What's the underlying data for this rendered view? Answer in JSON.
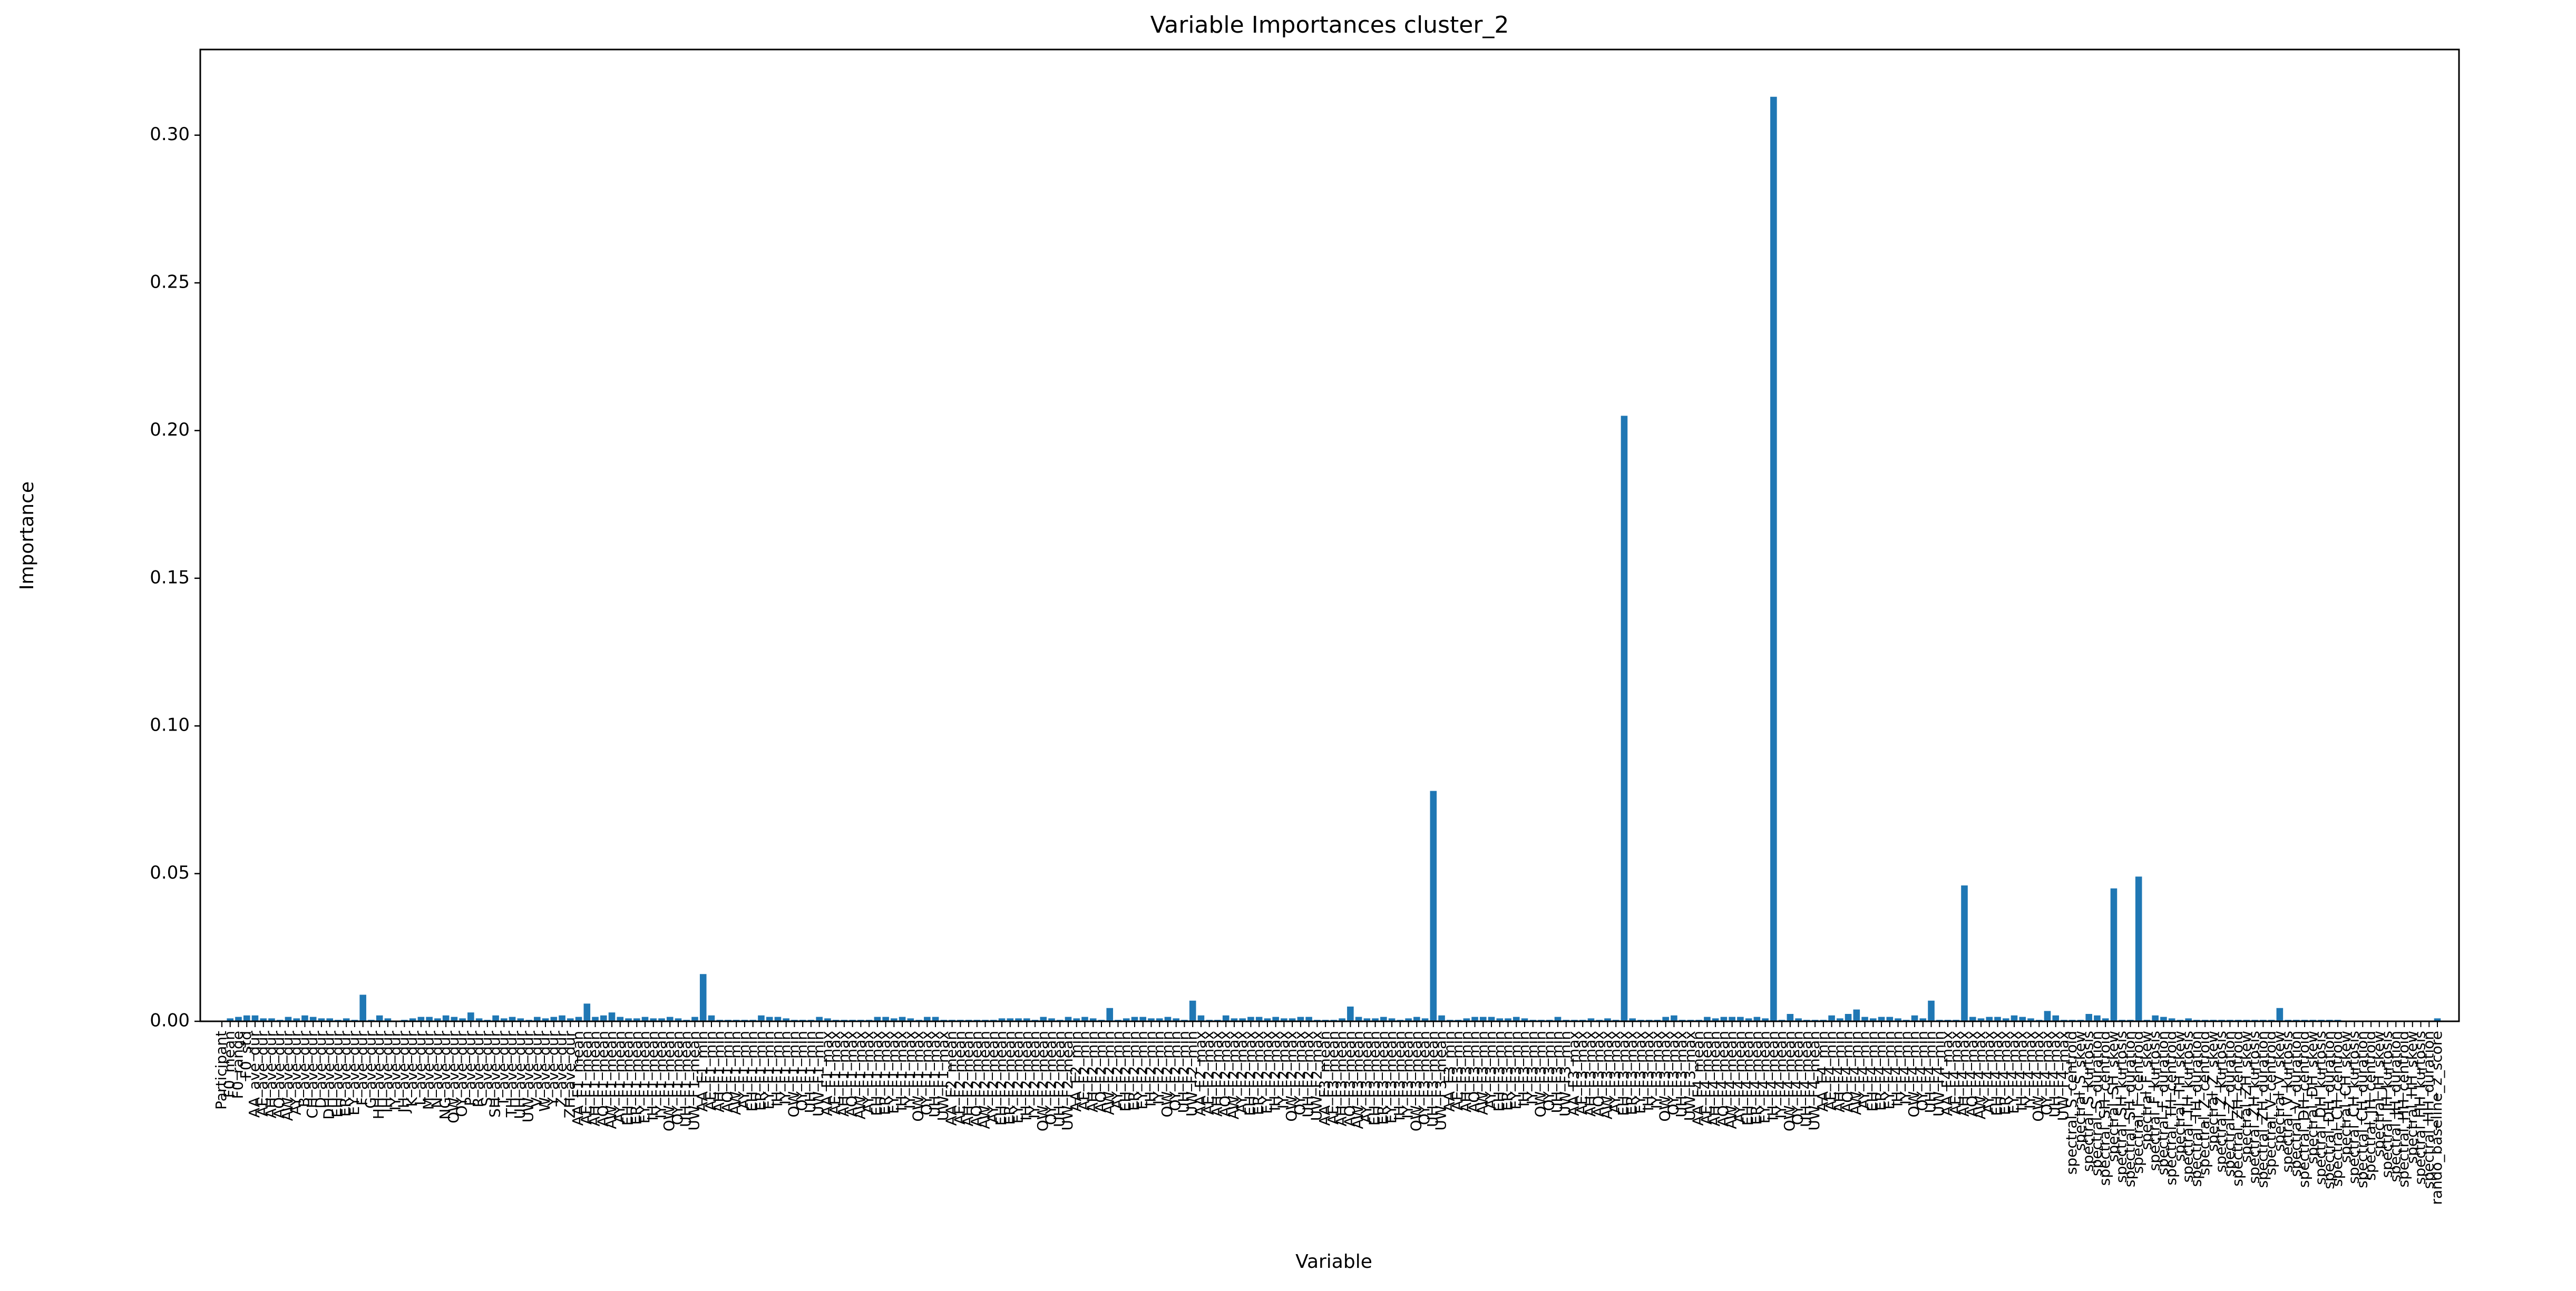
{
  "chart_data": {
    "type": "bar",
    "title": "Variable Importances cluster_2",
    "xlabel": "Variable",
    "ylabel": "Importance",
    "color": "#1f77b4",
    "categories": [
      "Participant",
      "F0_mean",
      "F0_range",
      "F0_std",
      "AA_ave_dur",
      "AE_ave_dur",
      "AH_ave_dur",
      "AO_ave_dur",
      "AW_ave_dur",
      "AY_ave_dur",
      "B_ave_dur",
      "CH_ave_dur",
      "D_ave_dur",
      "DH_ave_dur",
      "EH_ave_dur",
      "ER_ave_dur",
      "EY_ave_dur",
      "F_ave_dur",
      "G_ave_dur",
      "HH_ave_dur",
      "IH_ave_dur",
      "IY_ave_dur",
      "JH_ave_dur",
      "K_ave_dur",
      "L_ave_dur",
      "M_ave_dur",
      "N_ave_dur",
      "NG_ave_dur",
      "OW_ave_dur",
      "OY_ave_dur",
      "P_ave_dur",
      "R_ave_dur",
      "S_ave_dur",
      "SH_ave_dur",
      "T_ave_dur",
      "TH_ave_dur",
      "UH_ave_dur",
      "UW_ave_dur",
      "V_ave_dur",
      "W_ave_dur",
      "Y_ave_dur",
      "Z_ave_dur",
      "ZH_ave_dur",
      "AA_F1_mean",
      "AE_F1_mean",
      "AH_F1_mean",
      "AO_F1_mean",
      "AW_F1_mean",
      "AY_F1_mean",
      "EH_F1_mean",
      "ER_F1_mean",
      "EY_F1_mean",
      "IH_F1_mean",
      "IY_F1_mean",
      "OW_F1_mean",
      "OY_F1_mean",
      "UH_F1_mean",
      "UW_F1_mean",
      "AA_F1_min",
      "AE_F1_min",
      "AH_F1_min",
      "AO_F1_min",
      "AW_F1_min",
      "AY_F1_min",
      "EH_F1_min",
      "ER_F1_min",
      "EY_F1_min",
      "IH_F1_min",
      "IY_F1_min",
      "OW_F1_min",
      "OY_F1_min",
      "UH_F1_min",
      "UW_F1_min",
      "AA_F1_max",
      "AE_F1_max",
      "AH_F1_max",
      "AO_F1_max",
      "AW_F1_max",
      "AY_F1_max",
      "EH_F1_max",
      "ER_F1_max",
      "EY_F1_max",
      "IH_F1_max",
      "IY_F1_max",
      "OW_F1_max",
      "OY_F1_max",
      "UH_F1_max",
      "UW_F1_max",
      "AA_F2_mean",
      "AE_F2_mean",
      "AH_F2_mean",
      "AO_F2_mean",
      "AW_F2_mean",
      "AY_F2_mean",
      "EH_F2_mean",
      "ER_F2_mean",
      "EY_F2_mean",
      "IH_F2_mean",
      "IY_F2_mean",
      "OW_F2_mean",
      "OY_F2_mean",
      "UH_F2_mean",
      "UW_F2_mean",
      "AA_F2_min",
      "AE_F2_min",
      "AH_F2_min",
      "AO_F2_min",
      "AW_F2_min",
      "AY_F2_min",
      "EH_F2_min",
      "ER_F2_min",
      "EY_F2_min",
      "IH_F2_min",
      "IY_F2_min",
      "OW_F2_min",
      "OY_F2_min",
      "UH_F2_min",
      "UW_F2_min",
      "AA_F2_max",
      "AE_F2_max",
      "AH_F2_max",
      "AO_F2_max",
      "AW_F2_max",
      "AY_F2_max",
      "EH_F2_max",
      "ER_F2_max",
      "EY_F2_max",
      "IH_F2_max",
      "IY_F2_max",
      "OW_F2_max",
      "OY_F2_max",
      "UH_F2_max",
      "UW_F2_max",
      "AA_F3_mean",
      "AE_F3_mean",
      "AH_F3_mean",
      "AO_F3_mean",
      "AW_F3_mean",
      "AY_F3_mean",
      "EH_F3_mean",
      "ER_F3_mean",
      "EY_F3_mean",
      "IH_F3_mean",
      "IY_F3_mean",
      "OW_F3_mean",
      "OY_F3_mean",
      "UH_F3_mean",
      "UW_F3_mean",
      "AA_F3_min",
      "AE_F3_min",
      "AH_F3_min",
      "AO_F3_min",
      "AW_F3_min",
      "AY_F3_min",
      "EH_F3_min",
      "ER_F3_min",
      "EY_F3_min",
      "IH_F3_min",
      "IY_F3_min",
      "OW_F3_min",
      "OY_F3_min",
      "UH_F3_min",
      "UW_F3_min",
      "AA_F3_max",
      "AE_F3_max",
      "AH_F3_max",
      "AO_F3_max",
      "AW_F3_max",
      "AY_F3_max",
      "EH_F3_max",
      "ER_F3_max",
      "EY_F3_max",
      "IH_F3_max",
      "IY_F3_max",
      "OW_F3_max",
      "OY_F3_max",
      "UH_F3_max",
      "UW_F3_max",
      "AA_F4_mean",
      "AE_F4_mean",
      "AH_F4_mean",
      "AO_F4_mean",
      "AW_F4_mean",
      "AY_F4_mean",
      "EH_F4_mean",
      "ER_F4_mean",
      "EY_F4_mean",
      "IH_F4_mean",
      "IY_F4_mean",
      "OW_F4_mean",
      "OY_F4_mean",
      "UH_F4_mean",
      "UW_F4_mean",
      "AA_F4_min",
      "AE_F4_min",
      "AH_F4_min",
      "AO_F4_min",
      "AW_F4_min",
      "AY_F4_min",
      "EH_F4_min",
      "ER_F4_min",
      "EY_F4_min",
      "IH_F4_min",
      "IY_F4_min",
      "OW_F4_min",
      "OY_F4_min",
      "UH_F4_min",
      "UW_F4_min",
      "AA_F4_max",
      "AE_F4_max",
      "AH_F4_max",
      "AO_F4_max",
      "AW_F4_max",
      "AY_F4_max",
      "EH_F4_max",
      "ER_F4_max",
      "EY_F4_max",
      "IH_F4_max",
      "IY_F4_max",
      "OW_F4_max",
      "OY_F4_max",
      "UH_F4_max",
      "UW_F4_max",
      "spectral_S_centroid",
      "spectral_S_skew",
      "spectral_S_kurtosis",
      "spectral_S_duration",
      "spectral_SH_centroid",
      "spectral_SH_skew",
      "spectral_SH_kurtosis",
      "spectral_SH_duration",
      "spectral_F_centroid",
      "spectral_F_skew",
      "spectral_F_kurtosis",
      "spectral_F_duration",
      "spectral_TH_centroid",
      "spectral_TH_skew",
      "spectral_TH_kurtosis",
      "spectral_TH_duration",
      "spectral_Z_centroid",
      "spectral_Z_skew",
      "spectral_Z_kurtosis",
      "spectral_Z_duration",
      "spectral_ZH_centroid",
      "spectral_ZH_skew",
      "spectral_ZH_kurtosis",
      "spectral_ZH_duration",
      "spectral_V_centroid",
      "spectral_V_skew",
      "spectral_V_kurtosis",
      "spectral_V_duration",
      "spectral_DH_centroid",
      "spectral_DH_skew",
      "spectral_DH_kurtosis",
      "spectral_DH_duration",
      "spectral_CH_centroid",
      "spectral_CH_skew",
      "spectral_CH_kurtosis",
      "spectral_CH_duration",
      "spectral_JH_centroid",
      "spectral_JH_skew",
      "spectral_JH_kurtosis",
      "spectral_JH_duration",
      "spectral_HH_centroid",
      "spectral_HH_skew",
      "spectral_HH_kurtosis",
      "spectral_HH_duration",
      "rando_baseline_z_score"
    ],
    "values": [
      0,
      0.001,
      0.0015,
      0.002,
      0.002,
      0.001,
      0.001,
      0.0005,
      0.0015,
      0.001,
      0.002,
      0.0015,
      0.001,
      0.001,
      0.0005,
      0.001,
      0.0005,
      0.009,
      0.0005,
      0.002,
      0.001,
      0,
      0.0005,
      0.001,
      0.0015,
      0.0015,
      0.001,
      0.002,
      0.0015,
      0.001,
      0.003,
      0.001,
      0.0005,
      0.002,
      0.001,
      0.0015,
      0.001,
      0.0005,
      0.0015,
      0.001,
      0.0015,
      0.002,
      0.001,
      0.0015,
      0.006,
      0.0015,
      0.002,
      0.003,
      0.0015,
      0.001,
      0.001,
      0.0015,
      0.001,
      0.001,
      0.0015,
      0.001,
      0.0005,
      0.0015,
      0.016,
      0.002,
      0.0005,
      0.0005,
      0.0005,
      0.0005,
      0.0005,
      0.002,
      0.0015,
      0.0015,
      0.001,
      0.0005,
      0.0005,
      0.0005,
      0.0015,
      0.001,
      0.0005,
      0.0005,
      0.0005,
      0.0005,
      0.0005,
      0.0015,
      0.0015,
      0.001,
      0.0015,
      0.001,
      0.0005,
      0.0015,
      0.0015,
      0.0005,
      0.0005,
      0.0005,
      0.0005,
      0.0005,
      0.0005,
      0.0005,
      0.001,
      0.001,
      0.001,
      0.001,
      0.0005,
      0.0015,
      0.001,
      0.0005,
      0.0015,
      0.001,
      0.0015,
      0.001,
      0.0005,
      0.0045,
      0.0005,
      0.001,
      0.0015,
      0.0015,
      0.001,
      0.001,
      0.0015,
      0.001,
      0.0005,
      0.007,
      0.002,
      0.0005,
      0.0005,
      0.002,
      0.001,
      0.001,
      0.0015,
      0.0015,
      0.001,
      0.0015,
      0.001,
      0.001,
      0.0015,
      0.0015,
      0.0005,
      0.0005,
      0.0005,
      0.001,
      0.005,
      0.0015,
      0.001,
      0.001,
      0.0015,
      0.001,
      0.0005,
      0.001,
      0.0015,
      0.001,
      0.078,
      0.002,
      0.0005,
      0.0005,
      0.001,
      0.0015,
      0.0015,
      0.0015,
      0.001,
      0.001,
      0.0015,
      0.001,
      0.0005,
      0.0005,
      0.0005,
      0.0015,
      0.0005,
      0.0005,
      0.0005,
      0.001,
      0.0005,
      0.001,
      0.0005,
      0.205,
      0.001,
      0.0005,
      0.0005,
      0.0005,
      0.0015,
      0.002,
      0.0005,
      0.0005,
      0.0005,
      0.0015,
      0.001,
      0.0015,
      0.0015,
      0.0015,
      0.001,
      0.0015,
      0.001,
      0.313,
      0.0005,
      0.0025,
      0.001,
      0.0005,
      0.0005,
      0.0005,
      0.002,
      0.001,
      0.0025,
      0.004,
      0.0015,
      0.001,
      0.0015,
      0.0015,
      0.001,
      0.0005,
      0.002,
      0.001,
      0.007,
      0.0005,
      0.0005,
      0.0005,
      0.046,
      0.0015,
      0.001,
      0.0015,
      0.0015,
      0.001,
      0.002,
      0.0015,
      0.001,
      0.0005,
      0.0035,
      0.002,
      0.0005,
      0.0005,
      0.0005,
      0.0025,
      0.002,
      0.001,
      0.045,
      0.0005,
      0.0005,
      0.049,
      0.0005,
      0.002,
      0.0015,
      0.001,
      0.0005,
      0.001,
      0.0005,
      0.0005,
      0.0005,
      0.0005,
      0.0005,
      0.0005,
      0.0005,
      0.0005,
      0.0005,
      0.0005,
      0.0045,
      0.0005,
      0.0005,
      0.0005,
      0.0005,
      0.0005,
      0.0005,
      0.0005,
      0,
      0,
      0,
      0,
      0,
      0,
      0,
      0,
      0,
      0,
      0,
      0.001
    ],
    "ylim": [
      0,
      0.329
    ],
    "yticks": [
      {
        "value": 0,
        "label": "0.00"
      },
      {
        "value": 0.05,
        "label": "0.05"
      },
      {
        "value": 0.1,
        "label": "0.10"
      },
      {
        "value": 0.15,
        "label": "0.15"
      },
      {
        "value": 0.2,
        "label": "0.20"
      },
      {
        "value": 0.25,
        "label": "0.25"
      },
      {
        "value": 0.3,
        "label": "0.30"
      }
    ],
    "grid": false
  }
}
